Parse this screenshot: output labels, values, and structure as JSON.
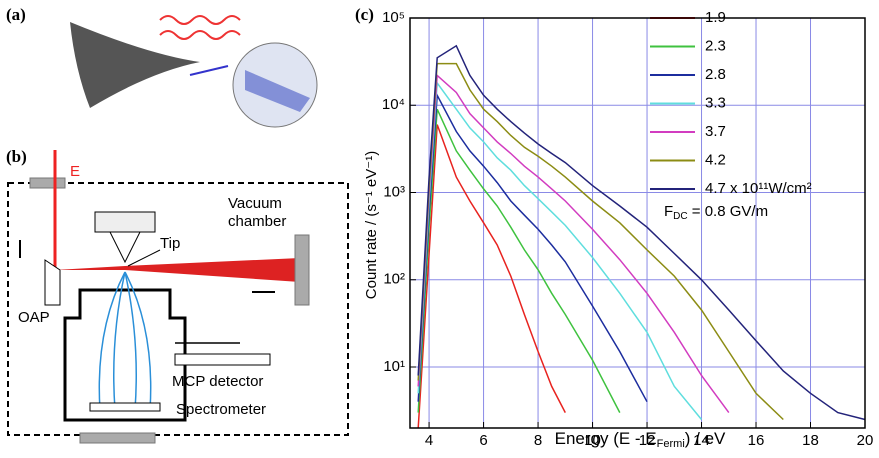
{
  "panels": {
    "a": {
      "label": "(a)"
    },
    "b": {
      "label": "(b)",
      "field": "E",
      "chamber": [
        "Vacuum",
        "chamber"
      ],
      "tip": "Tip",
      "oap": "OAP",
      "mcp": "MCP detector",
      "spectrometer": "Spectrometer"
    },
    "c": {
      "label": "(c)"
    }
  },
  "chart_data": {
    "type": "line",
    "y_label": "Count rate / (s⁻¹ eV⁻¹)",
    "x_label": [
      "Energy (E - E",
      "Fermi",
      ") / eV"
    ],
    "annotation": [
      "F",
      "DC",
      " = 0.8 GV/m"
    ],
    "x": [
      3.6,
      4,
      4.3,
      5,
      5.5,
      6,
      6.5,
      7,
      7.5,
      8,
      8.5,
      9,
      10,
      11,
      12,
      13,
      14,
      15,
      16,
      17,
      18,
      19,
      20
    ],
    "series": [
      {
        "name": "1.9",
        "color": "#e8231f",
        "values": [
          2,
          200,
          6000,
          1500,
          800,
          450,
          250,
          110,
          40,
          15,
          6,
          3,
          null,
          null,
          null,
          null,
          null,
          null,
          null,
          null,
          null,
          null,
          null
        ]
      },
      {
        "name": "2.3",
        "color": "#3fc23f",
        "values": [
          3,
          400,
          9000,
          3000,
          1800,
          1100,
          700,
          400,
          220,
          130,
          70,
          40,
          12,
          3,
          null,
          null,
          null,
          null,
          null,
          null,
          null,
          null,
          null
        ]
      },
      {
        "name": "2.8",
        "color": "#1c2d9e",
        "values": [
          4,
          600,
          13000,
          5000,
          3000,
          2000,
          1300,
          800,
          550,
          380,
          250,
          160,
          50,
          15,
          4,
          null,
          null,
          null,
          null,
          null,
          null,
          null,
          null
        ]
      },
      {
        "name": "3.3",
        "color": "#5fdede",
        "values": [
          5,
          800,
          18000,
          9000,
          5500,
          3800,
          2500,
          1800,
          1200,
          850,
          600,
          420,
          180,
          70,
          25,
          6,
          2.5,
          null,
          null,
          null,
          null,
          null,
          null
        ]
      },
      {
        "name": "3.7",
        "color": "#d23cc0",
        "values": [
          6,
          1000,
          22000,
          14000,
          8000,
          5500,
          3800,
          2800,
          2000,
          1500,
          1100,
          800,
          380,
          170,
          70,
          25,
          8,
          3,
          null,
          null,
          null,
          null,
          null
        ]
      },
      {
        "name": "4.2",
        "color": "#8c8c14",
        "values": [
          7,
          1200,
          30000,
          30000,
          15000,
          9000,
          6500,
          4500,
          3300,
          2600,
          2000,
          1500,
          800,
          450,
          220,
          110,
          45,
          15,
          5,
          2.5,
          null,
          null,
          null
        ]
      },
      {
        "name": "4.7 x 10¹¹W/cm²",
        "color": "#23237a",
        "values": [
          8,
          1500,
          35000,
          48000,
          22000,
          13000,
          9000,
          6500,
          4800,
          3600,
          2800,
          2200,
          1200,
          700,
          400,
          200,
          100,
          45,
          20,
          9,
          5,
          3,
          2.5
        ]
      }
    ],
    "xlim": [
      3.3,
      20
    ],
    "xticks": [
      4,
      6,
      8,
      10,
      12,
      14,
      16,
      18,
      20
    ],
    "ylim": [
      2,
      100000
    ],
    "y_log": true,
    "yticks": [
      {
        "value": 10,
        "label": "10¹"
      },
      {
        "value": 100,
        "label": "10²"
      },
      {
        "value": 1000,
        "label": "10³"
      },
      {
        "value": 10000,
        "label": "10⁴"
      },
      {
        "value": 100000,
        "label": "10⁵"
      }
    ],
    "grid": true,
    "grid_color": "#8a8ae6"
  }
}
